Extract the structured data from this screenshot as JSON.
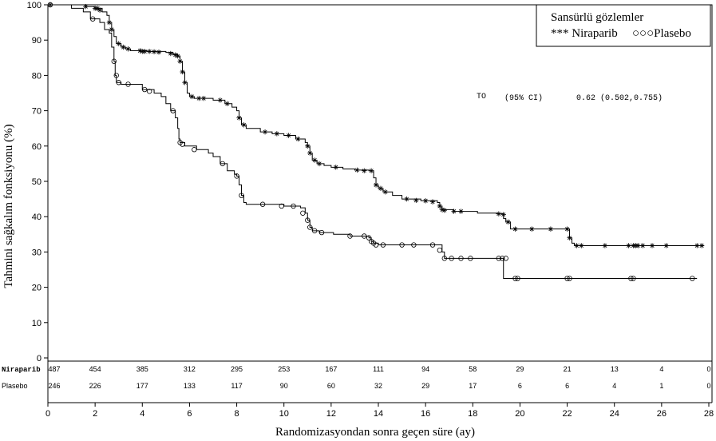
{
  "chart_data": {
    "type": "line",
    "xlabel": "Randomizasyondan sonra geçen süre (ay)",
    "ylabel": "Tahmini sağkalım fonksiyonu (%)",
    "xlim": [
      0,
      28
    ],
    "ylim": [
      0,
      100
    ],
    "x_ticks": [
      "0",
      "2",
      "4",
      "6",
      "8",
      "10",
      "12",
      "14",
      "16",
      "18",
      "20",
      "22",
      "24",
      "26",
      "28"
    ],
    "y_ticks": [
      "0",
      "10",
      "20",
      "30",
      "40",
      "50",
      "60",
      "70",
      "80",
      "90",
      "100"
    ],
    "legend": {
      "title": "Sansürlü gözlemler",
      "entries": [
        "*** Niraparib",
        "○○○Plasebo"
      ],
      "position": "top-right"
    },
    "annotation": {
      "label": "TO",
      "ci_label": "(95% CI)",
      "value": "0.62 (0.502,0.755)"
    },
    "series": [
      {
        "name": "Niraparib",
        "marker": "star",
        "step_points": [
          [
            0,
            100
          ],
          [
            1.2,
            100
          ],
          [
            1.6,
            99.5
          ],
          [
            2.0,
            99
          ],
          [
            2.3,
            98
          ],
          [
            2.5,
            97
          ],
          [
            2.6,
            95
          ],
          [
            2.7,
            93
          ],
          [
            2.8,
            91
          ],
          [
            2.9,
            89
          ],
          [
            3.1,
            88
          ],
          [
            3.3,
            87.5
          ],
          [
            3.5,
            87
          ],
          [
            4.2,
            86.8
          ],
          [
            5.0,
            86.5
          ],
          [
            5.3,
            86
          ],
          [
            5.5,
            85.5
          ],
          [
            5.6,
            84
          ],
          [
            5.7,
            81
          ],
          [
            5.8,
            78
          ],
          [
            5.9,
            75
          ],
          [
            6.0,
            74
          ],
          [
            6.2,
            73.5
          ],
          [
            7.0,
            73
          ],
          [
            7.5,
            72
          ],
          [
            7.8,
            71
          ],
          [
            8.0,
            70
          ],
          [
            8.1,
            68
          ],
          [
            8.2,
            66
          ],
          [
            8.4,
            65
          ],
          [
            9.0,
            64
          ],
          [
            9.5,
            63.5
          ],
          [
            10.0,
            63
          ],
          [
            10.5,
            62
          ],
          [
            10.9,
            61
          ],
          [
            11.0,
            60
          ],
          [
            11.1,
            58
          ],
          [
            11.2,
            56
          ],
          [
            11.4,
            55
          ],
          [
            11.7,
            54.5
          ],
          [
            12.0,
            54
          ],
          [
            12.5,
            53.5
          ],
          [
            13.0,
            53.2
          ],
          [
            13.6,
            53
          ],
          [
            13.8,
            51
          ],
          [
            13.9,
            49
          ],
          [
            14.0,
            48
          ],
          [
            14.2,
            47
          ],
          [
            14.6,
            46
          ],
          [
            15.0,
            45
          ],
          [
            15.8,
            44.5
          ],
          [
            16.5,
            44
          ],
          [
            16.6,
            43
          ],
          [
            16.7,
            42
          ],
          [
            17.2,
            41.5
          ],
          [
            18.1,
            41.5
          ],
          [
            18.2,
            41
          ],
          [
            19.0,
            40.8
          ],
          [
            19.3,
            39.5
          ],
          [
            19.4,
            38.5
          ],
          [
            19.6,
            36.5
          ],
          [
            22.0,
            36.5
          ],
          [
            22.1,
            34
          ],
          [
            22.2,
            32.5
          ],
          [
            22.3,
            31.8
          ],
          [
            27.8,
            31.8
          ]
        ],
        "censored": [
          [
            0.1,
            100
          ],
          [
            1.6,
            99.5
          ],
          [
            2.0,
            99
          ],
          [
            2.1,
            99
          ],
          [
            2.2,
            98.5
          ],
          [
            2.6,
            95
          ],
          [
            2.7,
            93
          ],
          [
            3.0,
            89
          ],
          [
            3.2,
            88
          ],
          [
            3.4,
            87.5
          ],
          [
            3.9,
            87
          ],
          [
            4.0,
            86.8
          ],
          [
            4.1,
            86.8
          ],
          [
            4.3,
            86.8
          ],
          [
            4.5,
            86.7
          ],
          [
            4.7,
            86.6
          ],
          [
            5.2,
            86.2
          ],
          [
            5.4,
            85.8
          ],
          [
            5.5,
            85.5
          ],
          [
            5.6,
            84
          ],
          [
            5.7,
            81
          ],
          [
            5.8,
            78
          ],
          [
            6.1,
            74
          ],
          [
            6.4,
            73.5
          ],
          [
            6.6,
            73.5
          ],
          [
            7.3,
            73
          ],
          [
            7.6,
            72
          ],
          [
            8.1,
            68
          ],
          [
            8.3,
            66
          ],
          [
            9.2,
            64
          ],
          [
            9.7,
            63.5
          ],
          [
            10.2,
            63
          ],
          [
            10.6,
            62
          ],
          [
            11.0,
            60
          ],
          [
            11.1,
            58
          ],
          [
            11.3,
            56
          ],
          [
            11.5,
            55
          ],
          [
            12.2,
            54
          ],
          [
            13.1,
            53.2
          ],
          [
            13.4,
            53
          ],
          [
            13.7,
            53
          ],
          [
            13.9,
            49
          ],
          [
            14.1,
            48
          ],
          [
            14.3,
            47
          ],
          [
            15.2,
            45
          ],
          [
            15.6,
            44.6
          ],
          [
            16.0,
            44.5
          ],
          [
            16.3,
            44.2
          ],
          [
            16.6,
            43
          ],
          [
            16.7,
            42
          ],
          [
            16.8,
            41.8
          ],
          [
            17.2,
            41.5
          ],
          [
            17.5,
            41.5
          ],
          [
            19.1,
            40.8
          ],
          [
            19.3,
            40.6
          ],
          [
            19.5,
            38.5
          ],
          [
            19.8,
            36.5
          ],
          [
            20.5,
            36.5
          ],
          [
            21.3,
            36.5
          ],
          [
            22.0,
            36.5
          ],
          [
            22.1,
            34
          ],
          [
            22.4,
            31.8
          ],
          [
            22.6,
            31.8
          ],
          [
            23.6,
            31.8
          ],
          [
            24.6,
            31.8
          ],
          [
            24.8,
            31.8
          ],
          [
            24.9,
            31.8
          ],
          [
            25.0,
            31.8
          ],
          [
            25.2,
            31.8
          ],
          [
            25.6,
            31.8
          ],
          [
            26.2,
            31.8
          ],
          [
            27.5,
            31.8
          ],
          [
            27.7,
            31.8
          ]
        ]
      },
      {
        "name": "Plasebo",
        "marker": "circle",
        "step_points": [
          [
            0,
            100
          ],
          [
            1.0,
            99
          ],
          [
            1.5,
            98
          ],
          [
            1.8,
            96
          ],
          [
            2.2,
            95
          ],
          [
            2.4,
            93
          ],
          [
            2.6,
            92
          ],
          [
            2.7,
            88
          ],
          [
            2.8,
            84
          ],
          [
            2.85,
            80
          ],
          [
            2.9,
            78
          ],
          [
            3.1,
            77.5
          ],
          [
            3.9,
            77.5
          ],
          [
            4.0,
            76
          ],
          [
            4.5,
            75
          ],
          [
            4.8,
            74
          ],
          [
            5.0,
            72
          ],
          [
            5.2,
            70
          ],
          [
            5.4,
            68
          ],
          [
            5.5,
            65
          ],
          [
            5.55,
            62
          ],
          [
            5.6,
            61
          ],
          [
            5.8,
            60
          ],
          [
            6.3,
            59
          ],
          [
            6.8,
            58
          ],
          [
            7.0,
            57
          ],
          [
            7.3,
            55
          ],
          [
            7.6,
            53
          ],
          [
            7.9,
            52
          ],
          [
            8.0,
            51.5
          ],
          [
            8.1,
            49
          ],
          [
            8.2,
            46
          ],
          [
            8.3,
            44
          ],
          [
            8.4,
            43.5
          ],
          [
            9.5,
            43.5
          ],
          [
            10.0,
            43
          ],
          [
            10.7,
            42.5
          ],
          [
            10.9,
            41
          ],
          [
            11.0,
            39
          ],
          [
            11.1,
            37
          ],
          [
            11.2,
            36
          ],
          [
            11.5,
            35.5
          ],
          [
            12.1,
            35
          ],
          [
            12.8,
            34.5
          ],
          [
            13.3,
            34.5
          ],
          [
            13.6,
            34
          ],
          [
            13.7,
            33
          ],
          [
            13.8,
            32.5
          ],
          [
            14.0,
            32
          ],
          [
            16.6,
            32
          ],
          [
            16.7,
            30
          ],
          [
            16.8,
            28.2
          ],
          [
            19.2,
            28.2
          ],
          [
            19.3,
            22.5
          ],
          [
            27.5,
            22.5
          ]
        ],
        "censored": [
          [
            0.1,
            100
          ],
          [
            1.9,
            96
          ],
          [
            2.8,
            84
          ],
          [
            2.9,
            80
          ],
          [
            3.0,
            78
          ],
          [
            3.4,
            77.5
          ],
          [
            4.1,
            76
          ],
          [
            4.3,
            75.5
          ],
          [
            5.3,
            70
          ],
          [
            5.6,
            61
          ],
          [
            5.7,
            60.5
          ],
          [
            6.2,
            59
          ],
          [
            7.4,
            55
          ],
          [
            8.0,
            51.5
          ],
          [
            8.2,
            46
          ],
          [
            9.1,
            43.5
          ],
          [
            9.9,
            43
          ],
          [
            10.4,
            43
          ],
          [
            10.8,
            41
          ],
          [
            11.0,
            39
          ],
          [
            11.1,
            37
          ],
          [
            11.3,
            36
          ],
          [
            11.6,
            35.5
          ],
          [
            12.8,
            34.5
          ],
          [
            13.4,
            34.5
          ],
          [
            13.6,
            34
          ],
          [
            13.7,
            33
          ],
          [
            13.8,
            32.5
          ],
          [
            13.9,
            32
          ],
          [
            14.2,
            32
          ],
          [
            15.0,
            32
          ],
          [
            15.5,
            32
          ],
          [
            16.3,
            32
          ],
          [
            16.6,
            30.5
          ],
          [
            16.8,
            28.2
          ],
          [
            17.1,
            28.2
          ],
          [
            17.5,
            28.2
          ],
          [
            17.9,
            28.2
          ],
          [
            19.1,
            28.2
          ],
          [
            19.25,
            28.2
          ],
          [
            19.4,
            28.2
          ],
          [
            19.8,
            22.5
          ],
          [
            19.9,
            22.5
          ],
          [
            22.0,
            22.5
          ],
          [
            22.1,
            22.5
          ],
          [
            24.7,
            22.5
          ],
          [
            24.8,
            22.5
          ],
          [
            27.3,
            22.5
          ]
        ]
      }
    ],
    "risk_table": {
      "x": [
        0,
        2,
        4,
        6,
        8,
        10,
        12,
        14,
        16,
        18,
        20,
        22,
        24,
        26,
        28
      ],
      "rows": [
        {
          "label": "Niraparib",
          "values": [
            "487",
            "454",
            "385",
            "312",
            "295",
            "253",
            "167",
            "111",
            "94",
            "58",
            "29",
            "21",
            "13",
            "4",
            "0"
          ]
        },
        {
          "label": "Plasebo",
          "values": [
            "246",
            "226",
            "177",
            "133",
            "117",
            "90",
            "60",
            "32",
            "29",
            "17",
            "6",
            "6",
            "4",
            "1",
            "0"
          ]
        }
      ]
    }
  }
}
